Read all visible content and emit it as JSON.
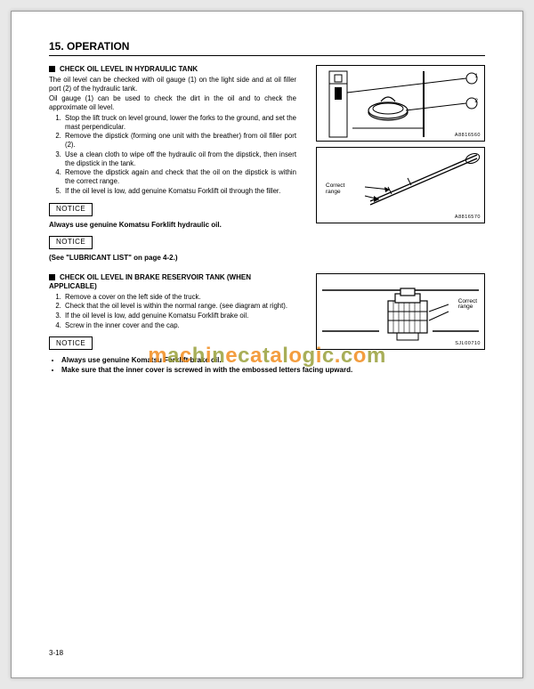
{
  "chapter": "15. OPERATION",
  "page_number": "3-18",
  "watermark": {
    "text_parts": [
      {
        "t": "m",
        "c": "o"
      },
      {
        "t": "a",
        "c": "g"
      },
      {
        "t": "c",
        "c": "o"
      },
      {
        "t": "h",
        "c": "g"
      },
      {
        "t": "i",
        "c": "o"
      },
      {
        "t": "n",
        "c": "g"
      },
      {
        "t": "e",
        "c": "o"
      },
      {
        "t": "c",
        "c": "g"
      },
      {
        "t": "a",
        "c": "o"
      },
      {
        "t": "t",
        "c": "g"
      },
      {
        "t": "a",
        "c": "o"
      },
      {
        "t": "l",
        "c": "g"
      },
      {
        "t": "o",
        "c": "o"
      },
      {
        "t": "g",
        "c": "g"
      },
      {
        "t": "i",
        "c": "o"
      },
      {
        "t": "c",
        "c": "g"
      },
      {
        "t": ".",
        "c": "o"
      },
      {
        "t": "c",
        "c": "g"
      },
      {
        "t": "o",
        "c": "o"
      },
      {
        "t": "m",
        "c": "g"
      }
    ]
  },
  "section1": {
    "title": "CHECK OIL LEVEL IN HYDRAULIC TANK",
    "intro1": "The oil level can be checked with oil gauge (1) on the light side and at oil filler port (2) of the hydraulic tank.",
    "intro2": "Oil gauge (1) can be used to check the dirt in the oil and to check the approximate oil level.",
    "steps": [
      "Stop the lift truck on level ground, lower the forks to the ground, and set the mast perpendicular.",
      "Remove the dipstick (forming one unit with the breather) from oil filler port (2).",
      "Use a clean cloth to wipe off the hydraulic oil from the dipstick, then insert the dipstick in the tank.",
      "Remove the dipstick again and check that the oil on the dipstick is within the correct range.",
      "If the oil level is low, add genuine Komatsu Forklift oil through the filler."
    ],
    "notice_label_1": "NOTICE",
    "notice_text_1": "Always use genuine Komatsu Forklift hydraulic oil.",
    "notice_label_2": "NOTICE",
    "notice_text_2": "(See \"LUBRICANT LIST\" on page 4-2.)",
    "fig1": {
      "callout1": "1",
      "callout2": "2",
      "code": "A8816560"
    },
    "fig2": {
      "label": "Correct\nrange",
      "code": "A8816570"
    }
  },
  "section2": {
    "title": "CHECK OIL LEVEL IN BRAKE RESERVOIR TANK (WHEN APPLICABLE)",
    "steps": [
      "Remove a cover on the left side of the truck.",
      "Check that the oil level is within the normal range. (see diagram at right).",
      "If the oil level is low, add genuine Komatsu Forklift brake oil.",
      "Screw in the inner cover and the cap."
    ],
    "notice_label": "NOTICE",
    "bullets": [
      "Always use genuine Komatsu Forklift brake oil.",
      "Make sure that the inner cover is screwed in with the embossed letters facing upward."
    ],
    "fig": {
      "label": "Correct\nrange",
      "code": "SJL00710"
    }
  }
}
